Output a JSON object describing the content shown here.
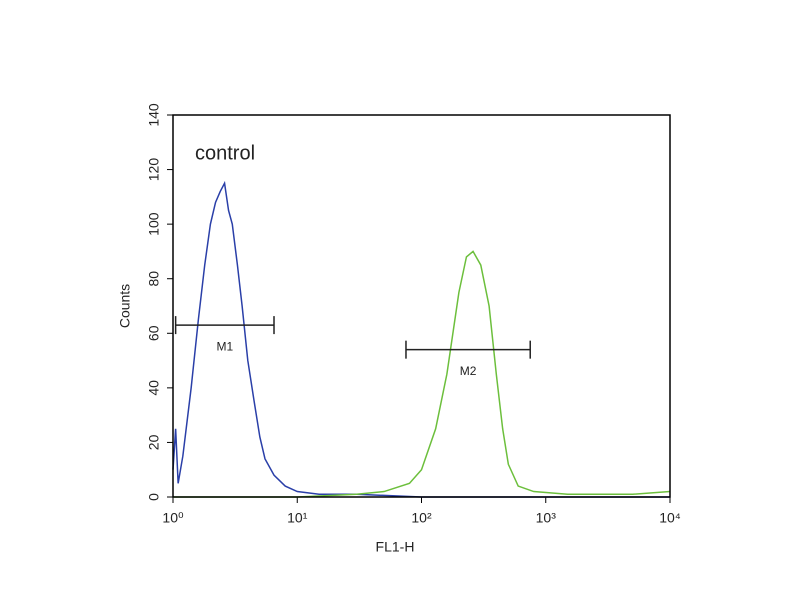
{
  "chart_data": {
    "type": "line",
    "xlabel": "FL1-H",
    "ylabel": "Counts",
    "annotation": "control",
    "xscale": "log",
    "xlim": [
      1,
      10000
    ],
    "xticks": [
      {
        "value": 1,
        "label": "10⁰"
      },
      {
        "value": 10,
        "label": "10¹"
      },
      {
        "value": 100,
        "label": "10²"
      },
      {
        "value": 1000,
        "label": "10³"
      },
      {
        "value": 10000,
        "label": "10⁴"
      }
    ],
    "ylim": [
      0,
      140
    ],
    "yticks": [
      0,
      20,
      40,
      60,
      80,
      100,
      120,
      140
    ],
    "series": [
      {
        "color": "#2a3fa8",
        "x": [
          1.0,
          1.05,
          1.1,
          1.2,
          1.4,
          1.6,
          1.8,
          2.0,
          2.2,
          2.4,
          2.6,
          2.8,
          3.0,
          3.3,
          3.6,
          4.0,
          4.5,
          5.0,
          5.5,
          6.5,
          8,
          10,
          15,
          30,
          100,
          1000,
          10000
        ],
        "values": [
          10,
          25,
          5,
          15,
          40,
          65,
          85,
          100,
          108,
          112,
          115,
          105,
          100,
          85,
          70,
          50,
          35,
          22,
          14,
          8,
          4,
          2,
          1,
          1,
          0,
          0,
          0
        ]
      },
      {
        "color": "#6cbf3c",
        "x": [
          1,
          10,
          30,
          50,
          80,
          100,
          130,
          160,
          200,
          230,
          260,
          300,
          350,
          400,
          450,
          500,
          600,
          800,
          1500,
          5000,
          10000
        ],
        "values": [
          0,
          0,
          1,
          2,
          5,
          10,
          25,
          45,
          75,
          88,
          90,
          85,
          70,
          45,
          25,
          12,
          4,
          2,
          1,
          1,
          2
        ]
      }
    ],
    "markers": [
      {
        "label": "M1",
        "x": [
          1.05,
          6.5
        ],
        "y": 63
      },
      {
        "label": "M2",
        "x": [
          75,
          750
        ],
        "y": 54
      }
    ]
  }
}
